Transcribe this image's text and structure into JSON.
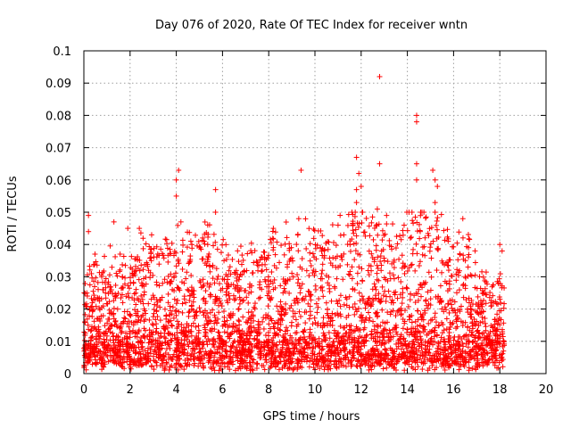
{
  "chart_data": {
    "type": "scatter",
    "title": "Day 076 of 2020, Rate Of TEC Index for receiver wntn",
    "xlabel": "GPS time / hours",
    "ylabel": "ROTI / TECUs",
    "xlim": [
      0,
      20
    ],
    "ylim": [
      0,
      0.1
    ],
    "x_ticks": [
      0,
      2,
      4,
      6,
      8,
      10,
      12,
      14,
      16,
      18,
      20
    ],
    "x_tick_labels": [
      "0",
      "2",
      "4",
      "6",
      "8",
      "10",
      "12",
      "14",
      "16",
      "18",
      "20"
    ],
    "y_ticks": [
      0,
      0.01,
      0.02,
      0.03,
      0.04,
      0.05,
      0.06,
      0.07,
      0.08,
      0.09,
      0.1
    ],
    "y_tick_labels": [
      "0",
      "0.01",
      "0.02",
      "0.03",
      "0.04",
      "0.05",
      "0.06",
      "0.07",
      "0.08",
      "0.09",
      "0.1"
    ],
    "grid": true,
    "marker": "+",
    "color": "#ff0000",
    "data_x_range": [
      0,
      18.2
    ],
    "series": [
      {
        "name": "ROTI",
        "notable_points": [
          {
            "x": 12.8,
            "y": 0.092
          },
          {
            "x": 14.4,
            "y": 0.08
          },
          {
            "x": 14.4,
            "y": 0.078
          },
          {
            "x": 11.8,
            "y": 0.067
          },
          {
            "x": 12.8,
            "y": 0.065
          },
          {
            "x": 14.4,
            "y": 0.065
          },
          {
            "x": 4.1,
            "y": 0.063
          },
          {
            "x": 9.4,
            "y": 0.063
          },
          {
            "x": 15.1,
            "y": 0.063
          },
          {
            "x": 11.9,
            "y": 0.062
          },
          {
            "x": 14.4,
            "y": 0.06
          },
          {
            "x": 4.0,
            "y": 0.06
          },
          {
            "x": 15.2,
            "y": 0.06
          },
          {
            "x": 12.0,
            "y": 0.058
          },
          {
            "x": 5.7,
            "y": 0.057
          },
          {
            "x": 11.8,
            "y": 0.057
          },
          {
            "x": 15.3,
            "y": 0.058
          },
          {
            "x": 4.0,
            "y": 0.055
          },
          {
            "x": 11.8,
            "y": 0.053
          },
          {
            "x": 15.2,
            "y": 0.053
          },
          {
            "x": 12.7,
            "y": 0.051
          },
          {
            "x": 5.7,
            "y": 0.05
          },
          {
            "x": 14.2,
            "y": 0.05
          },
          {
            "x": 0.2,
            "y": 0.049
          },
          {
            "x": 13.1,
            "y": 0.049
          },
          {
            "x": 16.4,
            "y": 0.048
          },
          {
            "x": 9.3,
            "y": 0.048
          },
          {
            "x": 1.3,
            "y": 0.047
          },
          {
            "x": 4.2,
            "y": 0.047
          },
          {
            "x": 11.0,
            "y": 0.046
          },
          {
            "x": 2.4,
            "y": 0.045
          },
          {
            "x": 0.2,
            "y": 0.044
          },
          {
            "x": 1.9,
            "y": 0.045
          },
          {
            "x": 8.2,
            "y": 0.045
          },
          {
            "x": 18.0,
            "y": 0.04
          },
          {
            "x": 18.1,
            "y": 0.038
          }
        ]
      }
    ]
  }
}
